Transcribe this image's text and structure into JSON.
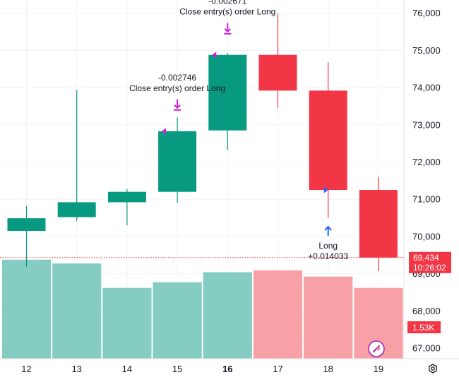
{
  "chart_data": {
    "type": "candlestick",
    "title": "",
    "categories": [
      "12",
      "13",
      "14",
      "15",
      "16",
      "17",
      "18",
      "19"
    ],
    "highlight_category": "16",
    "ohlc": [
      {
        "x": "12",
        "open": 70150,
        "high": 70820,
        "low": 69180,
        "close": 70490
      },
      {
        "x": "13",
        "open": 70520,
        "high": 73940,
        "low": 70420,
        "close": 70920
      },
      {
        "x": "14",
        "open": 70920,
        "high": 71280,
        "low": 70300,
        "close": 71200
      },
      {
        "x": "15",
        "open": 71200,
        "high": 73200,
        "low": 70900,
        "close": 72830
      },
      {
        "x": "16",
        "open": 72850,
        "high": 74930,
        "low": 72320,
        "close": 74880
      },
      {
        "x": "17",
        "open": 74880,
        "high": 75990,
        "low": 73450,
        "close": 73920
      },
      {
        "x": "18",
        "open": 73920,
        "high": 74680,
        "low": 70500,
        "close": 71250
      },
      {
        "x": "19",
        "open": 71250,
        "high": 71600,
        "low": 69070,
        "close": 69434
      }
    ],
    "volume": [
      1.58,
      1.52,
      1.13,
      1.22,
      1.38,
      1.41,
      1.31,
      1.13
    ],
    "y_axis": {
      "ticks": [
        "67,000",
        "68,000",
        "69,000",
        "70,000",
        "71,000",
        "72,000",
        "73,000",
        "74,000",
        "75,000",
        "76,000"
      ],
      "ylim": [
        66800,
        76400
      ]
    },
    "current_price": {
      "value": 69434,
      "label": "69,434",
      "countdown": "10:26:02"
    },
    "volume_tag": "1.53K",
    "annotations": [
      {
        "x": "15",
        "kind": "exit",
        "value": "-0.002746",
        "text": "Close entry(s) order Long",
        "price": 72830
      },
      {
        "x": "16",
        "kind": "exit",
        "value": "-0.002671",
        "text": "Close entry(s) order Long",
        "price": 74880
      },
      {
        "x": "18",
        "kind": "entry",
        "value": "+0.014033",
        "text": "Long",
        "price": 71250
      }
    ],
    "colors": {
      "up": "#089981",
      "down": "#f23645",
      "vol_up": "#85cdc2",
      "vol_down": "#f7a1a7",
      "marker_exit": "#cc1fd6",
      "marker_entry": "#2962ff",
      "grid": "#f0f3fa",
      "axis_text": "#131722"
    }
  }
}
